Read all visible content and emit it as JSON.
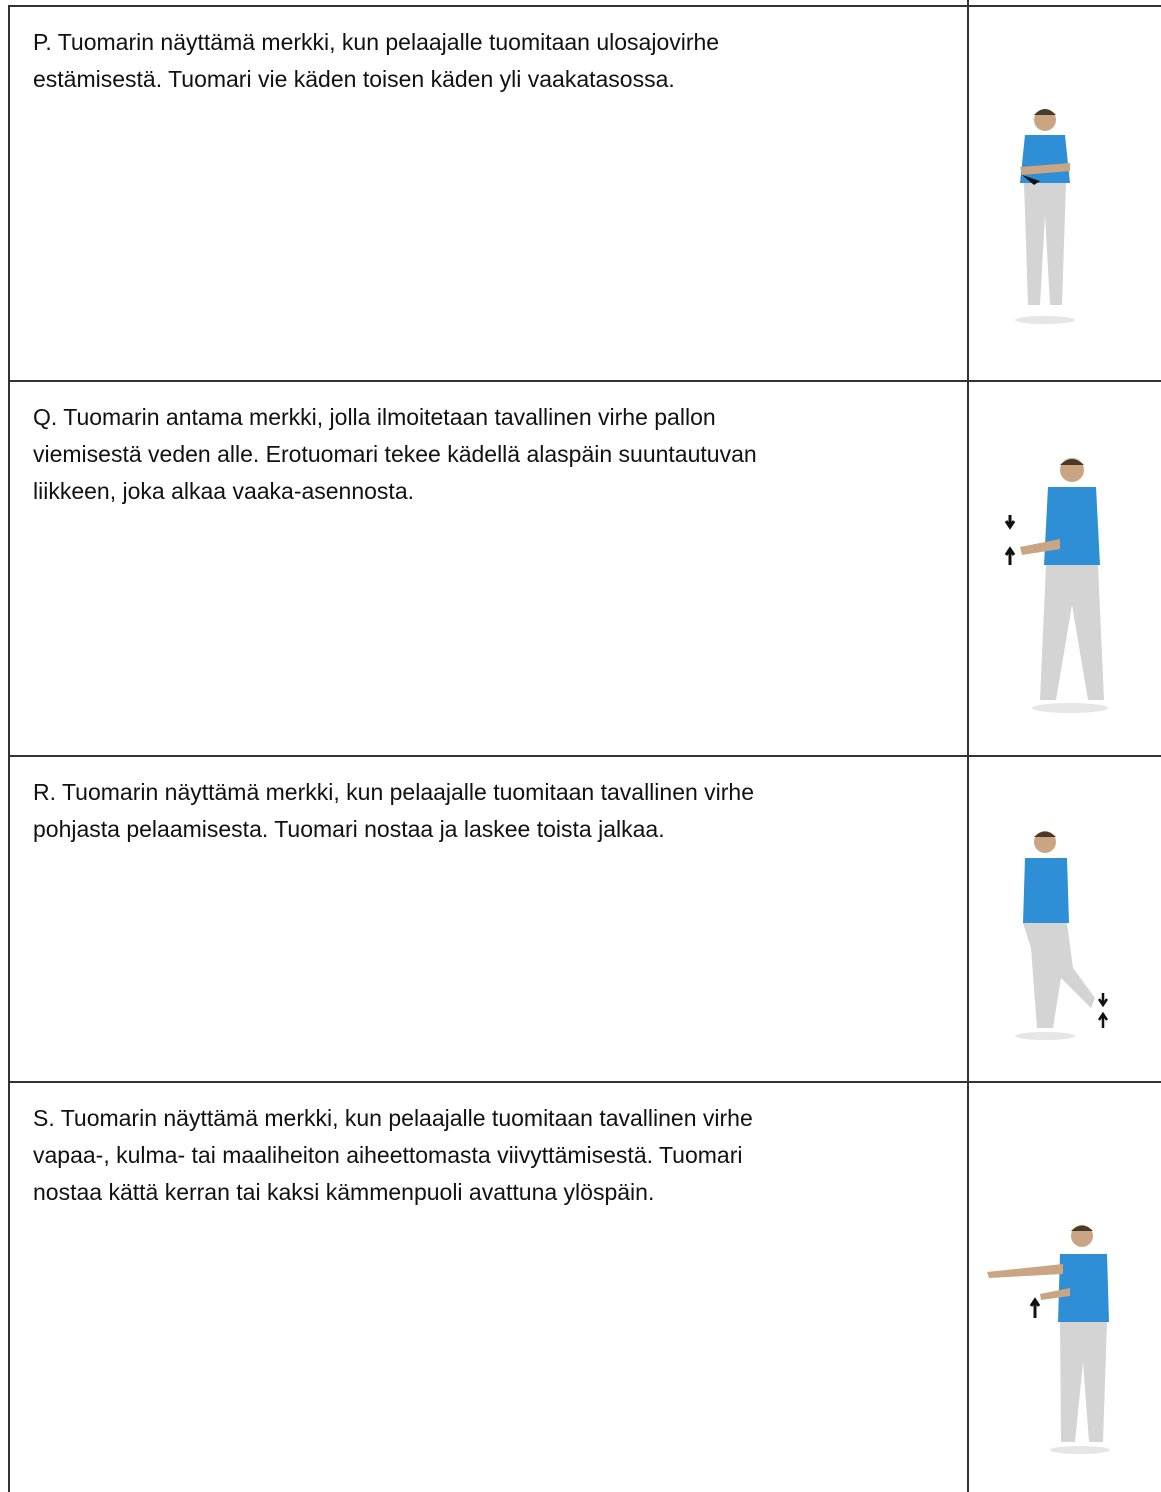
{
  "table": {
    "rows": [
      {
        "lines": [
          "P. Tuomarin näyttämä merkki, kun pelaajalle tuomitaan ulosajovirhe",
          "estämisestä. Tuomari vie käden toisen käden yli vaakatasossa."
        ]
      },
      {
        "lines": [
          "Q. Tuomarin antama merkki, jolla ilmoitetaan tavallinen virhe pallon",
          "viemisestä veden alle. Erotuomari tekee kädellä alaspäin suuntautuvan",
          "liikkeen, joka alkaa vaaka-asennosta."
        ]
      },
      {
        "lines": [
          "R. Tuomarin näyttämä merkki, kun pelaajalle tuomitaan tavallinen virhe",
          "pohjasta pelaamisesta. Tuomari nostaa ja laskee toista jalkaa."
        ]
      },
      {
        "lines": [
          "S. Tuomarin näyttämä merkki, kun pelaajalle tuomitaan tavallinen virhe",
          "vapaa-, kulma- tai maaliheiton aiheettomasta viivyttämisestä. Tuomari",
          "nostaa kättä kerran tai kaksi kämmenpuoli avattuna ylöspäin."
        ]
      }
    ]
  }
}
